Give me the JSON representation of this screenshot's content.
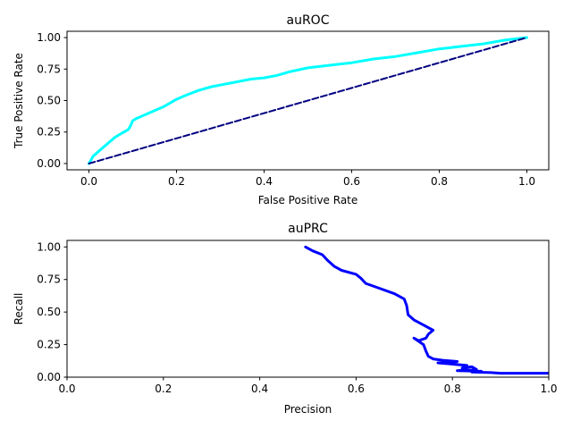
{
  "chart_data": [
    {
      "type": "line",
      "title": "auROC",
      "xlabel": "False Positive Rate",
      "ylabel": "True Positive Rate",
      "xlim": [
        -0.05,
        1.05
      ],
      "ylim": [
        -0.05,
        1.05
      ],
      "xticks": [
        0.0,
        0.2,
        0.4,
        0.6,
        0.8,
        1.0
      ],
      "xtick_labels": [
        "0.0",
        "0.2",
        "0.4",
        "0.6",
        "0.8",
        "1.0"
      ],
      "yticks": [
        0.0,
        0.25,
        0.5,
        0.75,
        1.0
      ],
      "ytick_labels": [
        "0.00",
        "0.25",
        "0.50",
        "0.75",
        "1.00"
      ],
      "grid": false,
      "series": [
        {
          "color": "#00ffff",
          "style": "solid",
          "x": [
            0.0,
            0.005,
            0.01,
            0.02,
            0.03,
            0.04,
            0.05,
            0.06,
            0.07,
            0.08,
            0.09,
            0.095,
            0.1,
            0.11,
            0.13,
            0.15,
            0.17,
            0.19,
            0.2,
            0.22,
            0.25,
            0.28,
            0.31,
            0.34,
            0.37,
            0.4,
            0.43,
            0.46,
            0.5,
            0.55,
            0.6,
            0.65,
            0.7,
            0.75,
            0.8,
            0.85,
            0.9,
            0.95,
            1.0
          ],
          "y": [
            0.0,
            0.03,
            0.06,
            0.09,
            0.12,
            0.15,
            0.18,
            0.21,
            0.23,
            0.25,
            0.27,
            0.3,
            0.34,
            0.36,
            0.39,
            0.42,
            0.45,
            0.49,
            0.51,
            0.54,
            0.58,
            0.61,
            0.63,
            0.65,
            0.67,
            0.68,
            0.7,
            0.73,
            0.76,
            0.78,
            0.8,
            0.83,
            0.85,
            0.88,
            0.91,
            0.93,
            0.95,
            0.98,
            1.0
          ]
        },
        {
          "color": "#000080",
          "style": "dashed",
          "x": [
            0.0,
            1.0
          ],
          "y": [
            0.0,
            1.0
          ]
        }
      ]
    },
    {
      "type": "line",
      "title": "auPRC",
      "xlabel": "Precision",
      "ylabel": "Recall",
      "xlim": [
        0.0,
        1.0
      ],
      "ylim": [
        0.0,
        1.05
      ],
      "xticks": [
        0.0,
        0.2,
        0.4,
        0.6,
        0.8,
        1.0
      ],
      "xtick_labels": [
        "0.0",
        "0.2",
        "0.4",
        "0.6",
        "0.8",
        "1.0"
      ],
      "yticks": [
        0.0,
        0.25,
        0.5,
        0.75,
        1.0
      ],
      "ytick_labels": [
        "0.00",
        "0.25",
        "0.50",
        "0.75",
        "1.00"
      ],
      "grid": false,
      "series": [
        {
          "color": "#0000ff",
          "style": "solid",
          "x": [
            0.495,
            0.51,
            0.53,
            0.54,
            0.555,
            0.57,
            0.6,
            0.61,
            0.62,
            0.65,
            0.68,
            0.7,
            0.705,
            0.708,
            0.72,
            0.74,
            0.76,
            0.75,
            0.745,
            0.73,
            0.72,
            0.74,
            0.745,
            0.75,
            0.76,
            0.78,
            0.81,
            0.77,
            0.8,
            0.83,
            0.82,
            0.84,
            0.85,
            0.81,
            0.86,
            0.84,
            0.88,
            0.9,
            1.0
          ],
          "y": [
            1.0,
            0.97,
            0.94,
            0.9,
            0.85,
            0.82,
            0.79,
            0.76,
            0.72,
            0.68,
            0.64,
            0.6,
            0.55,
            0.48,
            0.44,
            0.4,
            0.36,
            0.33,
            0.3,
            0.28,
            0.3,
            0.25,
            0.2,
            0.16,
            0.14,
            0.13,
            0.12,
            0.11,
            0.1,
            0.09,
            0.07,
            0.08,
            0.06,
            0.05,
            0.045,
            0.04,
            0.035,
            0.03,
            0.03
          ]
        }
      ]
    }
  ]
}
